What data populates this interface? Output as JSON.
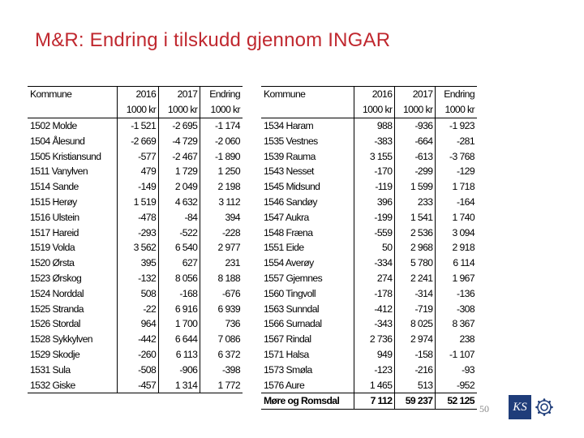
{
  "title": "M&R: Endring i tilskudd gjennom INGAR",
  "slide_number": "50",
  "logo_text": "KS",
  "colors": {
    "title": "#c0282f",
    "logo": "#1f3d7a"
  },
  "table_left": {
    "headers": [
      "Kommune",
      "2016",
      "2017",
      "Endring"
    ],
    "units": [
      "",
      "1000 kr",
      "1000 kr",
      "1000 kr"
    ],
    "rows": [
      [
        "1502 Molde",
        "-1 521",
        "-2 695",
        "-1 174"
      ],
      [
        "1504 Ålesund",
        "-2 669",
        "-4 729",
        "-2 060"
      ],
      [
        "1505 Kristiansund",
        "-577",
        "-2 467",
        "-1 890"
      ],
      [
        "1511 Vanylven",
        "479",
        "1 729",
        "1 250"
      ],
      [
        "1514 Sande",
        "-149",
        "2 049",
        "2 198"
      ],
      [
        "1515 Herøy",
        "1 519",
        "4 632",
        "3 112"
      ],
      [
        "1516 Ulstein",
        "-478",
        "-84",
        "394"
      ],
      [
        "1517 Hareid",
        "-293",
        "-522",
        "-228"
      ],
      [
        "1519 Volda",
        "3 562",
        "6 540",
        "2 977"
      ],
      [
        "1520 Ørsta",
        "395",
        "627",
        "231"
      ],
      [
        "1523 Ørskog",
        "-132",
        "8 056",
        "8 188"
      ],
      [
        "1524 Norddal",
        "508",
        "-168",
        "-676"
      ],
      [
        "1525 Stranda",
        "-22",
        "6 916",
        "6 939"
      ],
      [
        "1526 Stordal",
        "964",
        "1 700",
        "736"
      ],
      [
        "1528 Sykkylven",
        "-442",
        "6 644",
        "7 086"
      ],
      [
        "1529 Skodje",
        "-260",
        "6 113",
        "6 372"
      ],
      [
        "1531 Sula",
        "-508",
        "-906",
        "-398"
      ],
      [
        "1532 Giske",
        "-457",
        "1 314",
        "1 772"
      ]
    ]
  },
  "table_right": {
    "headers": [
      "Kommune",
      "2016",
      "2017",
      "Endring"
    ],
    "units": [
      "",
      "1000 kr",
      "1000 kr",
      "1000 kr"
    ],
    "rows": [
      [
        "1534 Haram",
        "988",
        "-936",
        "-1 923"
      ],
      [
        "1535 Vestnes",
        "-383",
        "-664",
        "-281"
      ],
      [
        "1539 Rauma",
        "3 155",
        "-613",
        "-3 768"
      ],
      [
        "1543 Nesset",
        "-170",
        "-299",
        "-129"
      ],
      [
        "1545 Midsund",
        "-119",
        "1 599",
        "1 718"
      ],
      [
        "1546 Sandøy",
        "396",
        "233",
        "-164"
      ],
      [
        "1547 Aukra",
        "-199",
        "1 541",
        "1 740"
      ],
      [
        "1548 Fræna",
        "-559",
        "2 536",
        "3 094"
      ],
      [
        "1551 Eide",
        "50",
        "2 968",
        "2 918"
      ],
      [
        "1554 Averøy",
        "-334",
        "5 780",
        "6 114"
      ],
      [
        "1557 Gjemnes",
        "274",
        "2 241",
        "1 967"
      ],
      [
        "1560 Tingvoll",
        "-178",
        "-314",
        "-136"
      ],
      [
        "1563 Sunndal",
        "-412",
        "-719",
        "-308"
      ],
      [
        "1566 Surnadal",
        "-343",
        "8 025",
        "8 367"
      ],
      [
        "1567 Rindal",
        "2 736",
        "2 974",
        "238"
      ],
      [
        "1571 Halsa",
        "949",
        "-158",
        "-1 107"
      ],
      [
        "1573 Smøla",
        "-123",
        "-216",
        "-93"
      ],
      [
        "1576 Aure",
        "1 465",
        "513",
        "-952"
      ]
    ],
    "total": [
      "Møre og Romsdal",
      "7 112",
      "59 237",
      "52 125"
    ]
  }
}
